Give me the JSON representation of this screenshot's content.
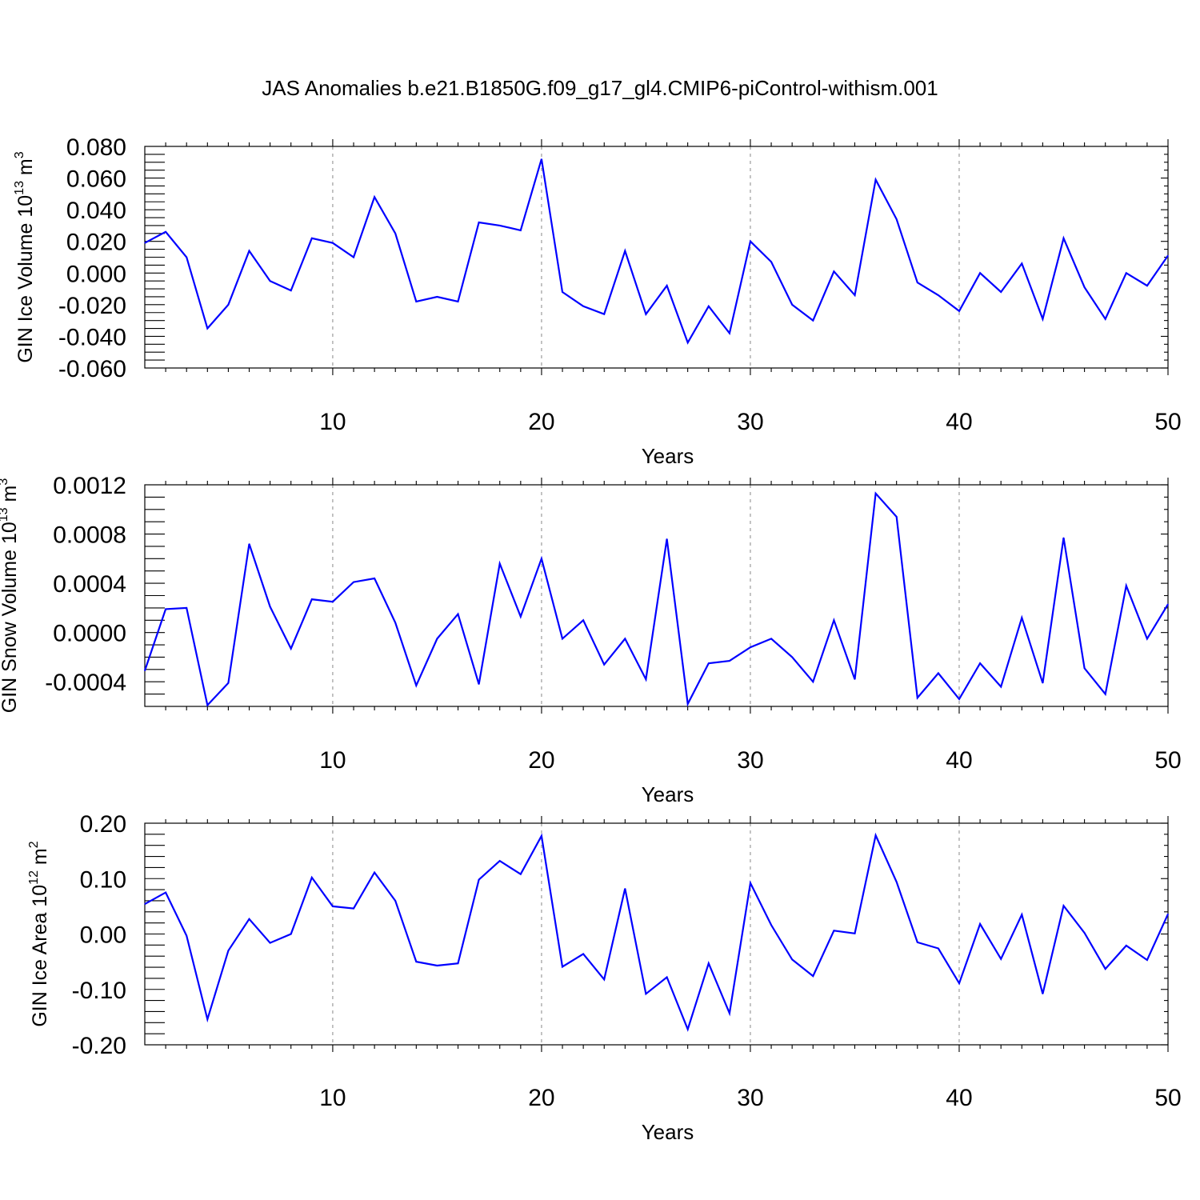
{
  "title": "JAS Anomalies b.e21.B1850G.f09_g17_gl4.CMIP6-piControl-withism.001",
  "colors": {
    "line": "#0000ff",
    "axis": "#000000",
    "grid": "#888888"
  },
  "chart_data": [
    {
      "type": "line",
      "title": "JAS Anomalies b.e21.B1850G.f09_g17_gl4.CMIP6-piControl-withism.001",
      "xlabel": "Years",
      "ylabel": "GIN Ice Volume 10",
      "ylabel_exp": "13",
      "ylabel_unit": " m",
      "ylabel_unit_exp": "3",
      "xlim": [
        1,
        50
      ],
      "ylim": [
        -0.06,
        0.08
      ],
      "grid": "vertical dashed at major x ticks",
      "x_ticks": [
        10,
        20,
        30,
        40,
        50
      ],
      "x_tick_labels": [
        "10",
        "20",
        "30",
        "40",
        "50"
      ],
      "y_ticks": [
        -0.06,
        -0.04,
        -0.02,
        0.0,
        0.02,
        0.04,
        0.06,
        0.08
      ],
      "y_tick_labels": [
        "-0.060",
        "-0.040",
        "-0.020",
        "0.000",
        "0.020",
        "0.040",
        "0.060",
        "0.080"
      ],
      "series": [
        {
          "name": "GIN Ice Volume",
          "x": [
            1,
            2,
            3,
            4,
            5,
            6,
            7,
            8,
            9,
            10,
            11,
            12,
            13,
            14,
            15,
            16,
            17,
            18,
            19,
            20,
            21,
            22,
            23,
            24,
            25,
            26,
            27,
            28,
            29,
            30,
            31,
            32,
            33,
            34,
            35,
            36,
            37,
            38,
            39,
            40,
            41,
            42,
            43,
            44,
            45,
            46,
            47,
            48,
            49,
            50
          ],
          "values": [
            0.019,
            0.026,
            0.01,
            -0.035,
            -0.02,
            0.014,
            -0.005,
            -0.011,
            0.022,
            0.019,
            0.01,
            0.048,
            0.025,
            -0.018,
            -0.015,
            -0.018,
            0.032,
            0.03,
            0.027,
            0.072,
            -0.012,
            -0.021,
            -0.026,
            0.014,
            -0.026,
            -0.008,
            -0.044,
            -0.021,
            -0.038,
            0.02,
            0.007,
            -0.02,
            -0.03,
            0.001,
            -0.014,
            0.059,
            0.034,
            -0.006,
            -0.014,
            -0.024,
            0.0,
            -0.012,
            0.006,
            -0.029,
            0.022,
            -0.009,
            -0.029,
            0.0,
            -0.008,
            0.011
          ]
        }
      ]
    },
    {
      "type": "line",
      "xlabel": "Years",
      "ylabel": "GIN Snow Volume 10",
      "ylabel_exp": "13",
      "ylabel_unit": " m",
      "ylabel_unit_exp": "3",
      "xlim": [
        1,
        50
      ],
      "ylim": [
        -0.0006,
        0.0012
      ],
      "grid": "vertical dashed at major x ticks",
      "x_ticks": [
        10,
        20,
        30,
        40,
        50
      ],
      "x_tick_labels": [
        "10",
        "20",
        "30",
        "40",
        "50"
      ],
      "y_ticks": [
        -0.0004,
        0.0,
        0.0004,
        0.0008,
        0.0012
      ],
      "y_tick_labels": [
        "-0.0004",
        "0.0000",
        "0.0004",
        "0.0008",
        "0.0012"
      ],
      "series": [
        {
          "name": "GIN Snow Volume",
          "x": [
            1,
            2,
            3,
            4,
            5,
            6,
            7,
            8,
            9,
            10,
            11,
            12,
            13,
            14,
            15,
            16,
            17,
            18,
            19,
            20,
            21,
            22,
            23,
            24,
            25,
            26,
            27,
            28,
            29,
            30,
            31,
            32,
            33,
            34,
            35,
            36,
            37,
            38,
            39,
            40,
            41,
            42,
            43,
            44,
            45,
            46,
            47,
            48,
            49,
            50
          ],
          "values": [
            -0.00031,
            0.00019,
            0.0002,
            -0.00059,
            -0.00041,
            0.00072,
            0.00021,
            -0.00013,
            0.00027,
            0.00025,
            0.00041,
            0.00044,
            8e-05,
            -0.00043,
            -5e-05,
            0.00015,
            -0.00042,
            0.00056,
            0.00013,
            0.0006,
            -5e-05,
            0.0001,
            -0.00026,
            -5e-05,
            -0.00038,
            0.00076,
            -0.00058,
            -0.00025,
            -0.00023,
            -0.00012,
            -5e-05,
            -0.0002,
            -0.0004,
            0.0001,
            -0.00038,
            0.00113,
            0.00094,
            -0.00053,
            -0.00033,
            -0.00054,
            -0.00025,
            -0.00044,
            0.00012,
            -0.00041,
            0.00077,
            -0.00029,
            -0.0005,
            0.00038,
            -5e-05,
            0.00023
          ]
        }
      ]
    },
    {
      "type": "line",
      "xlabel": "Years",
      "ylabel": "GIN Ice Area 10",
      "ylabel_exp": "12",
      "ylabel_unit": " m",
      "ylabel_unit_exp": "2",
      "xlim": [
        1,
        50
      ],
      "ylim": [
        -0.2,
        0.2
      ],
      "grid": "vertical dashed at major x ticks",
      "x_ticks": [
        10,
        20,
        30,
        40,
        50
      ],
      "x_tick_labels": [
        "10",
        "20",
        "30",
        "40",
        "50"
      ],
      "y_ticks": [
        -0.2,
        -0.1,
        0.0,
        0.1,
        0.2
      ],
      "y_tick_labels": [
        "-0.20",
        "-0.10",
        "0.00",
        "0.10",
        "0.20"
      ],
      "series": [
        {
          "name": "GIN Ice Area",
          "x": [
            1,
            2,
            3,
            4,
            5,
            6,
            7,
            8,
            9,
            10,
            11,
            12,
            13,
            14,
            15,
            16,
            17,
            18,
            19,
            20,
            21,
            22,
            23,
            24,
            25,
            26,
            27,
            28,
            29,
            30,
            31,
            32,
            33,
            34,
            35,
            36,
            37,
            38,
            39,
            40,
            41,
            42,
            43,
            44,
            45,
            46,
            47,
            48,
            49,
            50
          ],
          "values": [
            0.054,
            0.075,
            -0.003,
            -0.154,
            -0.03,
            0.027,
            -0.016,
            0.0,
            0.102,
            0.05,
            0.046,
            0.111,
            0.06,
            -0.05,
            -0.057,
            -0.053,
            0.098,
            0.132,
            0.108,
            0.177,
            -0.059,
            -0.036,
            -0.082,
            0.082,
            -0.108,
            -0.078,
            -0.172,
            -0.053,
            -0.143,
            0.092,
            0.016,
            -0.046,
            -0.076,
            0.006,
            0.001,
            0.178,
            0.094,
            -0.015,
            -0.026,
            -0.089,
            0.018,
            -0.045,
            0.035,
            -0.108,
            0.051,
            0.002,
            -0.063,
            -0.021,
            -0.047,
            0.036
          ]
        }
      ]
    }
  ]
}
